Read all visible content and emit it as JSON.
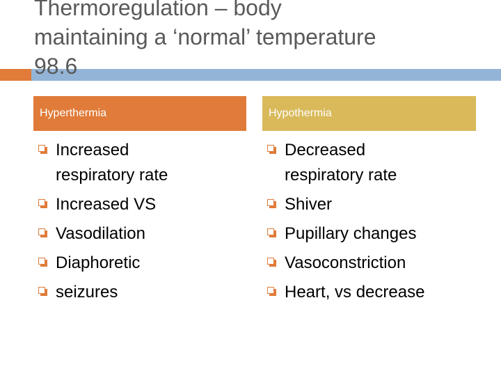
{
  "slide": {
    "title_lines": [
      "Thermoregulation – body",
      "maintaining a ‘normal’ temperature",
      "98.6"
    ]
  },
  "columns": {
    "hyperthermia": {
      "header": "Hyperthermia",
      "items": [
        [
          "Increased",
          "respiratory rate"
        ],
        [
          "Increased VS"
        ],
        [
          "Vasodilation"
        ],
        [
          "Diaphoretic"
        ],
        [
          "seizures"
        ]
      ]
    },
    "hypothermia": {
      "header": "Hypothermia",
      "items": [
        [
          "Decreased",
          "respiratory rate"
        ],
        [
          "Shiver"
        ],
        [
          "Pupillary changes"
        ],
        [
          "Vasoconstriction"
        ],
        [
          "Heart, vs decrease"
        ]
      ]
    }
  },
  "colors": {
    "accent_orange": "#e07b39",
    "accent_blue": "#93b4d6",
    "accent_gold": "#d9b95a"
  }
}
